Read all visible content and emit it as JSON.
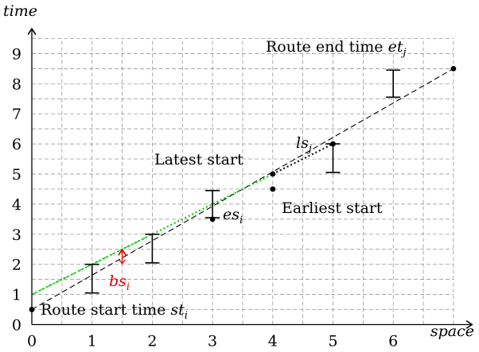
{
  "chart_data": {
    "type": "line",
    "xlabel": "space",
    "ylabel": "time",
    "x_ticks": [
      0,
      1,
      2,
      3,
      4,
      5,
      6
    ],
    "y_ticks": [
      0,
      1,
      2,
      3,
      4,
      5,
      6,
      7,
      8,
      9
    ],
    "xlim": [
      0,
      7
    ],
    "ylim": [
      0,
      10
    ],
    "grid": true,
    "route_line": {
      "from": [
        0,
        0.5
      ],
      "to": [
        7,
        8.5
      ],
      "style": "dashed",
      "color": "#000000"
    },
    "latest_line": {
      "from": [
        0,
        1
      ],
      "to": [
        4,
        5
      ],
      "style": "dotted",
      "color": "#00c800"
    },
    "shifted_line": {
      "from": [
        0,
        1
      ],
      "to": [
        2,
        3
      ],
      "style": "dashed",
      "color": "#00c800"
    },
    "dotted_tail": {
      "from": [
        4,
        5
      ],
      "to": [
        5,
        6
      ],
      "style": "dotted",
      "color": "#000000"
    },
    "points": [
      {
        "x": 0,
        "y": 0.5
      },
      {
        "x": 3,
        "y": 3.5
      },
      {
        "x": 4,
        "y": 4.5
      },
      {
        "x": 4,
        "y": 5
      },
      {
        "x": 5,
        "y": 6
      },
      {
        "x": 7,
        "y": 8.5
      }
    ],
    "time_windows": [
      {
        "x": 1,
        "low": 1.05,
        "high": 2.0
      },
      {
        "x": 2,
        "low": 2.05,
        "high": 3.0
      },
      {
        "x": 3,
        "low": 3.55,
        "high": 4.45
      },
      {
        "x": 5,
        "low": 5.05,
        "high": 6.0
      },
      {
        "x": 6,
        "low": 7.55,
        "high": 8.45
      }
    ],
    "buffer_arrow": {
      "x": 1.5,
      "from": 2.0,
      "to": 2.5,
      "color": "#e00000"
    },
    "annotations": {
      "route_start": "Route start time",
      "route_start_sym": "st",
      "route_start_sub": "i",
      "route_end": "Route end time",
      "route_end_sym": "et",
      "route_end_sub": "j",
      "latest_start": "Latest start",
      "earliest_start": "Earliest start",
      "ls_sym": "ls",
      "ls_sub": "j",
      "es_sym": "es",
      "es_sub": "i",
      "bs_sym": "bs",
      "bs_sub": "i"
    }
  }
}
